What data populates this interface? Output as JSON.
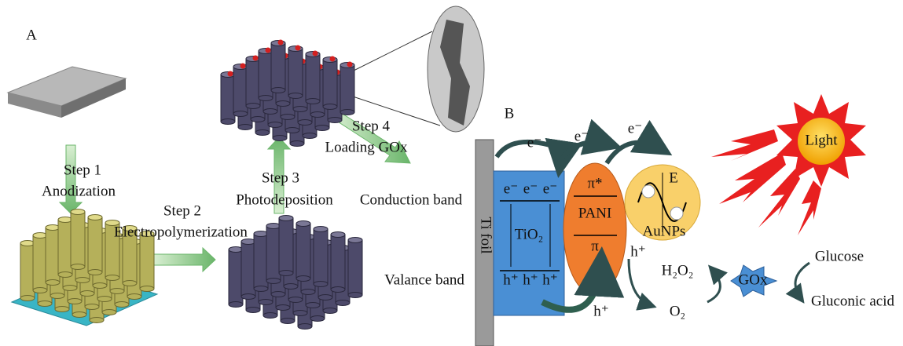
{
  "panel_a": {
    "label": "A",
    "steps": [
      {
        "name": "Step 1",
        "action": "Anodization"
      },
      {
        "name": "Step 2",
        "action": "Electropolymerization"
      },
      {
        "name": "Step 3",
        "action": "Photodeposition"
      },
      {
        "name": "Step 4",
        "action": "Loading GOx"
      }
    ]
  },
  "panel_b": {
    "label": "B",
    "conduction_band": "Conduction band",
    "valance_band": "Valance band",
    "ti_foil": "Ti foil",
    "tio2": {
      "label": "TiO₂",
      "electrons": [
        "e⁻",
        "e⁻",
        "e⁻"
      ],
      "holes": [
        "h⁺",
        "h⁺",
        "h⁺"
      ]
    },
    "pani": {
      "label": "PANI",
      "pi_star": "π*",
      "pi": "π"
    },
    "aunps": {
      "label": "AuNPs",
      "field": "E"
    },
    "electron_transfers": [
      "e⁻",
      "e⁻",
      "e⁻"
    ],
    "hole_transfers": [
      "h⁺",
      "h⁺"
    ],
    "light": "Light",
    "h2o2": "H₂O₂",
    "o2": "O₂",
    "enzyme": "GOx",
    "glucose": "Glucose",
    "gluconic_acid": "Gluconic acid"
  }
}
